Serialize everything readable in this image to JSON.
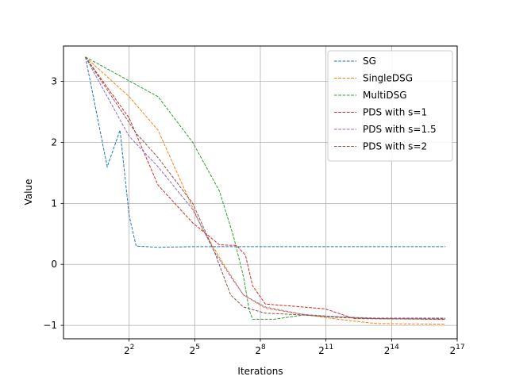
{
  "chart_data": {
    "type": "line",
    "title": "",
    "xlabel": "Iterations",
    "ylabel": "Value",
    "x_scale": "log2",
    "xlim": [
      0.5,
      131072
    ],
    "ylim": [
      -1.22,
      3.58
    ],
    "x_ticks": [
      4,
      32,
      256,
      2048,
      16384,
      131072
    ],
    "x_tick_labels": [
      {
        "base": "2",
        "exp": "2"
      },
      {
        "base": "2",
        "exp": "5"
      },
      {
        "base": "2",
        "exp": "8"
      },
      {
        "base": "2",
        "exp": "11"
      },
      {
        "base": "2",
        "exp": "14"
      },
      {
        "base": "2",
        "exp": "17"
      }
    ],
    "y_ticks": [
      -1,
      0,
      1,
      2,
      3
    ],
    "y_tick_labels": [
      "−1",
      "0",
      "1",
      "2",
      "3"
    ],
    "grid": true,
    "legend_position": "top-right",
    "series": [
      {
        "name": "SG",
        "color": "#1f77b4",
        "points": [
          [
            1,
            3.4
          ],
          [
            2,
            1.6
          ],
          [
            3,
            2.2
          ],
          [
            4,
            0.8
          ],
          [
            5,
            0.3
          ],
          [
            10,
            0.28
          ],
          [
            30,
            0.29
          ],
          [
            100,
            0.29
          ],
          [
            300,
            0.29
          ],
          [
            1000,
            0.29
          ],
          [
            10000,
            0.29
          ],
          [
            90000,
            0.29
          ]
        ]
      },
      {
        "name": "SingleDSG",
        "color": "#ff7f0e",
        "points": [
          [
            1,
            3.4
          ],
          [
            4,
            2.75
          ],
          [
            10,
            2.2
          ],
          [
            20,
            1.4
          ],
          [
            40,
            0.6
          ],
          [
            80,
            0.0
          ],
          [
            150,
            -0.5
          ],
          [
            300,
            -0.72
          ],
          [
            1000,
            -0.82
          ],
          [
            3000,
            -0.9
          ],
          [
            10000,
            -0.97
          ],
          [
            90000,
            -0.98
          ]
        ]
      },
      {
        "name": "MultiDSG",
        "color": "#2ca02c",
        "points": [
          [
            1,
            3.4
          ],
          [
            10,
            2.75
          ],
          [
            30,
            2.0
          ],
          [
            70,
            1.2
          ],
          [
            110,
            0.45
          ],
          [
            150,
            -0.2
          ],
          [
            180,
            -0.75
          ],
          [
            200,
            -0.9
          ],
          [
            400,
            -0.9
          ],
          [
            1000,
            -0.83
          ],
          [
            3000,
            -0.86
          ],
          [
            10000,
            -0.89
          ],
          [
            90000,
            -0.9
          ]
        ]
      },
      {
        "name": "PDS with s=1",
        "color": "#d62728",
        "points": [
          [
            1,
            3.4
          ],
          [
            4,
            2.4
          ],
          [
            10,
            1.3
          ],
          [
            30,
            0.68
          ],
          [
            70,
            0.32
          ],
          [
            120,
            0.31
          ],
          [
            160,
            0.15
          ],
          [
            200,
            -0.35
          ],
          [
            300,
            -0.65
          ],
          [
            1000,
            -0.7
          ],
          [
            2000,
            -0.73
          ],
          [
            3000,
            -0.8
          ],
          [
            5000,
            -0.89
          ],
          [
            90000,
            -0.9
          ]
        ]
      },
      {
        "name": "PDS with s=1.5",
        "color": "#9467bd",
        "points": [
          [
            1,
            3.4
          ],
          [
            4,
            2.1
          ],
          [
            10,
            1.6
          ],
          [
            30,
            0.9
          ],
          [
            60,
            0.2
          ],
          [
            100,
            -0.2
          ],
          [
            150,
            -0.5
          ],
          [
            300,
            -0.7
          ],
          [
            1000,
            -0.82
          ],
          [
            3000,
            -0.86
          ],
          [
            10000,
            -0.88
          ],
          [
            90000,
            -0.88
          ]
        ]
      },
      {
        "name": "PDS with s=2",
        "color": "#8c564b",
        "points": [
          [
            1,
            3.4
          ],
          [
            5,
            2.15
          ],
          [
            10,
            1.75
          ],
          [
            30,
            1.0
          ],
          [
            60,
            0.2
          ],
          [
            100,
            -0.5
          ],
          [
            150,
            -0.7
          ],
          [
            300,
            -0.8
          ],
          [
            1000,
            -0.83
          ],
          [
            3000,
            -0.87
          ],
          [
            10000,
            -0.89
          ],
          [
            90000,
            -0.89
          ]
        ]
      }
    ]
  }
}
